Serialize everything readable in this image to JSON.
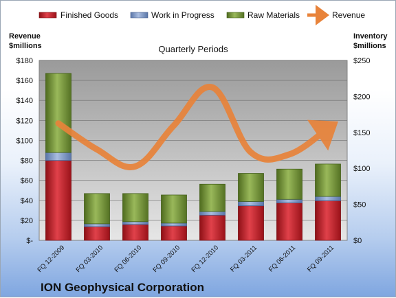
{
  "chart_data": {
    "type": "bar",
    "title": "Quarterly Periods",
    "company": "ION Geophysical Corporation",
    "left_axis_label": [
      "Revenue",
      "$millions"
    ],
    "right_axis_label": [
      "Inventory",
      "$millions"
    ],
    "categories": [
      "FQ 12-2009",
      "FQ 03-2010",
      "FQ 06-2010",
      "FQ 09-2010",
      "FQ 12-2010",
      "FQ 03-2011",
      "FQ 06-2011",
      "FQ 09-2011"
    ],
    "left_ticks": [
      "$-",
      "$20",
      "$40",
      "$60",
      "$80",
      "$100",
      "$120",
      "$140",
      "$160",
      "$180"
    ],
    "right_ticks": [
      "$0",
      "$50",
      "$100",
      "$150",
      "$200",
      "$250"
    ],
    "ylim_left": [
      0,
      180
    ],
    "ylim_right": [
      0,
      250
    ],
    "stacked_series": [
      {
        "name": "Finished Goods",
        "axis": "right",
        "color": "#c8202a",
        "values": [
          111,
          19,
          22,
          20,
          35,
          48,
          52,
          55
        ]
      },
      {
        "name": "Work in Progress",
        "axis": "right",
        "color": "#7e98c8",
        "values": [
          11,
          4,
          4,
          4,
          5,
          6,
          5,
          6
        ]
      },
      {
        "name": "Raw Materials",
        "axis": "right",
        "color": "#7b9a3c",
        "values": [
          110,
          42,
          39,
          39,
          38,
          39,
          42,
          45
        ]
      }
    ],
    "line_series": {
      "name": "Revenue",
      "axis": "left",
      "color": "#e8833a",
      "values": [
        117,
        91,
        74,
        115,
        153,
        88,
        86,
        112
      ]
    },
    "legend": [
      "Finished Goods",
      "Work in Progress",
      "Raw Materials",
      "Revenue"
    ],
    "grid": true,
    "legend_position": "top"
  }
}
